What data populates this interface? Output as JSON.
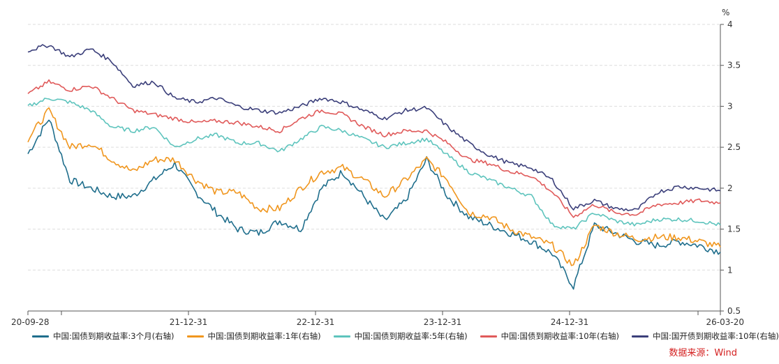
{
  "chart_data": {
    "type": "line",
    "title": "",
    "ylabel": "%",
    "y_axis_side": "right",
    "ylim": [
      0.5,
      4
    ],
    "yticks": [
      "0.5",
      "1",
      "1.5",
      "2",
      "2.5",
      "3",
      "3.5",
      "4"
    ],
    "xticks": [
      "20-09-28",
      "21-12-31",
      "22-12-31",
      "23-12-31",
      "24-12-31",
      "26-03-20"
    ],
    "grid": true,
    "source": "数据来源：Wind",
    "x": [
      "2020-09",
      "2020-11",
      "2021-01",
      "2021-03",
      "2021-05",
      "2021-07",
      "2021-09",
      "2021-11",
      "2022-01",
      "2022-03",
      "2022-05",
      "2022-07",
      "2022-09",
      "2022-11",
      "2023-01",
      "2023-03",
      "2023-05",
      "2023-07",
      "2023-09",
      "2023-11",
      "2024-01",
      "2024-03",
      "2024-05",
      "2024-07",
      "2024-09",
      "2024-11",
      "2025-01",
      "2025-03",
      "2025-05",
      "2025-07",
      "2025-09",
      "2025-11",
      "2026-01",
      "2026-03"
    ],
    "series": [
      {
        "name": "中国:国债到期收益率:3个月(右轴)",
        "color": "#1f6e8c",
        "values": [
          2.42,
          2.85,
          2.1,
          2.0,
          1.9,
          1.9,
          2.1,
          2.3,
          1.95,
          1.7,
          1.5,
          1.45,
          1.6,
          1.5,
          2.0,
          2.2,
          1.9,
          1.6,
          1.85,
          2.35,
          1.9,
          1.65,
          1.55,
          1.45,
          1.35,
          1.2,
          0.8,
          1.55,
          1.45,
          1.35,
          1.3,
          1.35,
          1.3,
          1.22
        ]
      },
      {
        "name": "中国:国债到期收益率:1年(右轴)",
        "color": "#f0961e",
        "values": [
          2.6,
          2.95,
          2.5,
          2.55,
          2.35,
          2.2,
          2.35,
          2.35,
          2.1,
          1.95,
          1.95,
          1.75,
          1.75,
          2.0,
          2.2,
          2.25,
          2.1,
          1.9,
          2.1,
          2.35,
          2.1,
          1.7,
          1.65,
          1.5,
          1.4,
          1.3,
          1.05,
          1.55,
          1.45,
          1.38,
          1.4,
          1.4,
          1.35,
          1.28
        ]
      },
      {
        "name": "中国:国债到期收益率:5年(右轴)",
        "color": "#5ec4bd",
        "values": [
          3.0,
          3.1,
          3.05,
          2.95,
          2.75,
          2.7,
          2.75,
          2.5,
          2.6,
          2.65,
          2.55,
          2.55,
          2.45,
          2.6,
          2.75,
          2.7,
          2.6,
          2.5,
          2.55,
          2.6,
          2.4,
          2.2,
          2.1,
          2.0,
          1.9,
          1.55,
          1.5,
          1.7,
          1.6,
          1.55,
          1.62,
          1.62,
          1.6,
          1.55
        ]
      },
      {
        "name": "中国:国债到期收益率:10年(右轴)",
        "color": "#e05a5a",
        "values": [
          3.15,
          3.3,
          3.2,
          3.25,
          3.1,
          2.95,
          2.9,
          2.85,
          2.8,
          2.82,
          2.8,
          2.75,
          2.7,
          2.85,
          2.95,
          2.9,
          2.75,
          2.65,
          2.7,
          2.7,
          2.55,
          2.35,
          2.3,
          2.2,
          2.15,
          1.95,
          1.65,
          1.8,
          1.7,
          1.68,
          1.8,
          1.82,
          1.85,
          1.82
        ]
      },
      {
        "name": "中国:国开债到期收益率:10年(右轴)",
        "color": "#3b3f7a",
        "values": [
          3.68,
          3.75,
          3.6,
          3.7,
          3.55,
          3.25,
          3.3,
          3.1,
          3.05,
          3.1,
          3.0,
          2.95,
          2.92,
          3.0,
          3.1,
          3.05,
          2.95,
          2.85,
          2.95,
          2.98,
          2.75,
          2.55,
          2.4,
          2.3,
          2.25,
          2.1,
          1.75,
          1.85,
          1.75,
          1.73,
          1.95,
          2.02,
          2.0,
          1.97
        ]
      }
    ]
  }
}
